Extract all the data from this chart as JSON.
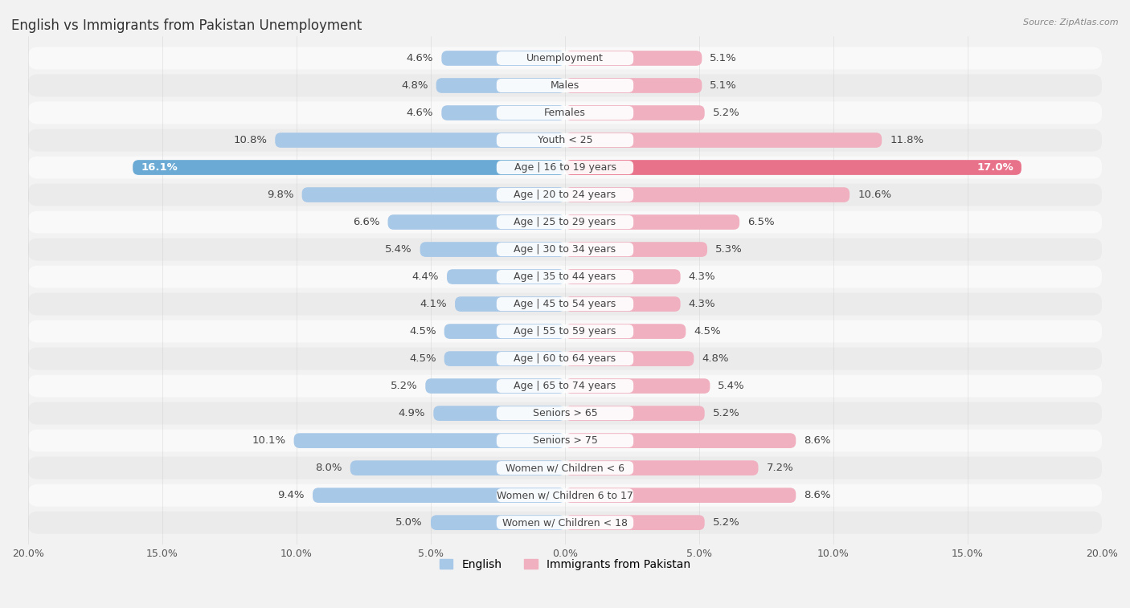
{
  "title": "English vs Immigrants from Pakistan Unemployment",
  "source": "Source: ZipAtlas.com",
  "categories": [
    "Unemployment",
    "Males",
    "Females",
    "Youth < 25",
    "Age | 16 to 19 years",
    "Age | 20 to 24 years",
    "Age | 25 to 29 years",
    "Age | 30 to 34 years",
    "Age | 35 to 44 years",
    "Age | 45 to 54 years",
    "Age | 55 to 59 years",
    "Age | 60 to 64 years",
    "Age | 65 to 74 years",
    "Seniors > 65",
    "Seniors > 75",
    "Women w/ Children < 6",
    "Women w/ Children 6 to 17",
    "Women w/ Children < 18"
  ],
  "english_values": [
    4.6,
    4.8,
    4.6,
    10.8,
    16.1,
    9.8,
    6.6,
    5.4,
    4.4,
    4.1,
    4.5,
    4.5,
    5.2,
    4.9,
    10.1,
    8.0,
    9.4,
    5.0
  ],
  "pakistan_values": [
    5.1,
    5.1,
    5.2,
    11.8,
    17.0,
    10.6,
    6.5,
    5.3,
    4.3,
    4.3,
    4.5,
    4.8,
    5.4,
    5.2,
    8.6,
    7.2,
    8.6,
    5.2
  ],
  "english_color": "#a8c8e8",
  "pakistan_color": "#f0b0c0",
  "highlight_english_color": "#6aaad4",
  "highlight_pakistan_color": "#e8728a",
  "max_val": 20.0,
  "bg_color": "#f2f2f2",
  "row_bg_light": "#f9f9f9",
  "row_bg_dark": "#ebebeb",
  "label_fontsize": 9.5,
  "title_fontsize": 12,
  "source_fontsize": 8,
  "legend_fontsize": 10
}
